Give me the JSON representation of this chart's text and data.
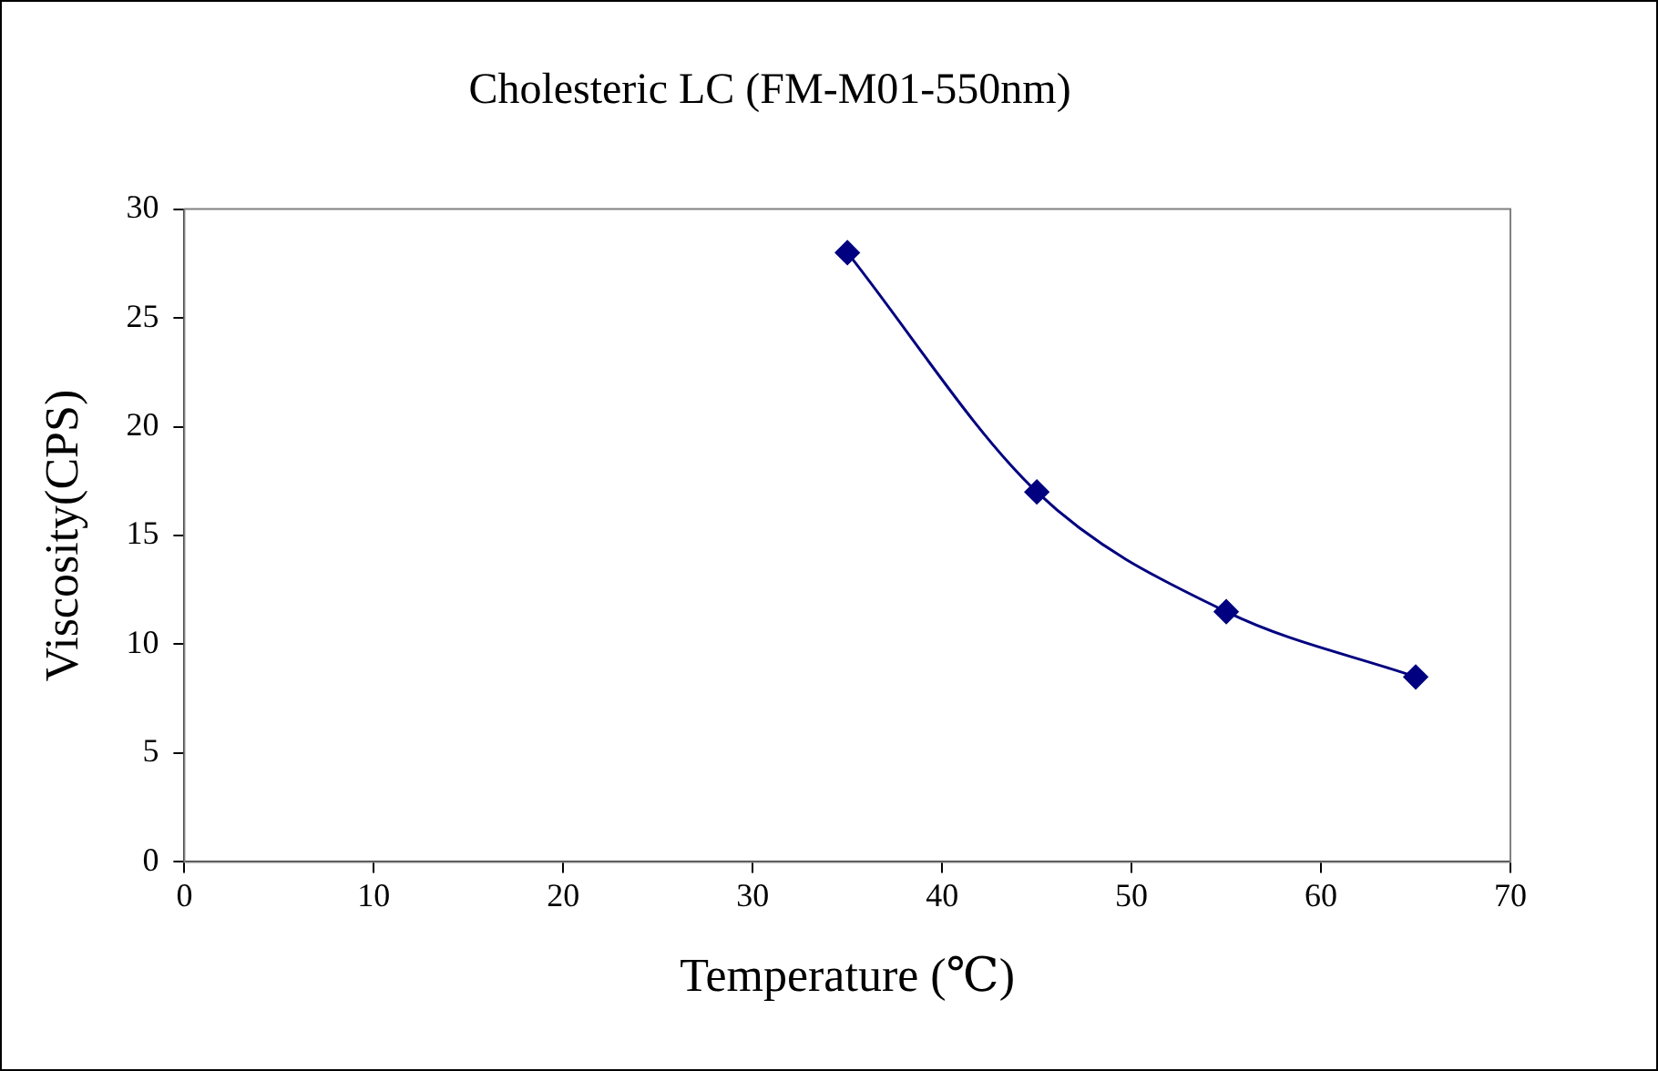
{
  "chart_data": {
    "type": "line",
    "title": "Cholesteric LC (FM-M01-550nm)",
    "xlabel": "Temperature (℃)",
    "ylabel": "Viscosity(CPS)",
    "x": [
      35,
      45,
      55,
      65
    ],
    "series": [
      {
        "color": "#000080",
        "values": [
          28,
          17,
          11.5,
          8.5
        ]
      }
    ],
    "xlim": [
      0,
      70
    ],
    "xticks": [
      0,
      10,
      20,
      30,
      40,
      50,
      60,
      70
    ],
    "ylim": [
      0,
      30
    ],
    "yticks": [
      0,
      5,
      10,
      15,
      20,
      25,
      30
    ],
    "grid": false,
    "legend": false,
    "marker": "diamond",
    "line_style": "solid"
  }
}
